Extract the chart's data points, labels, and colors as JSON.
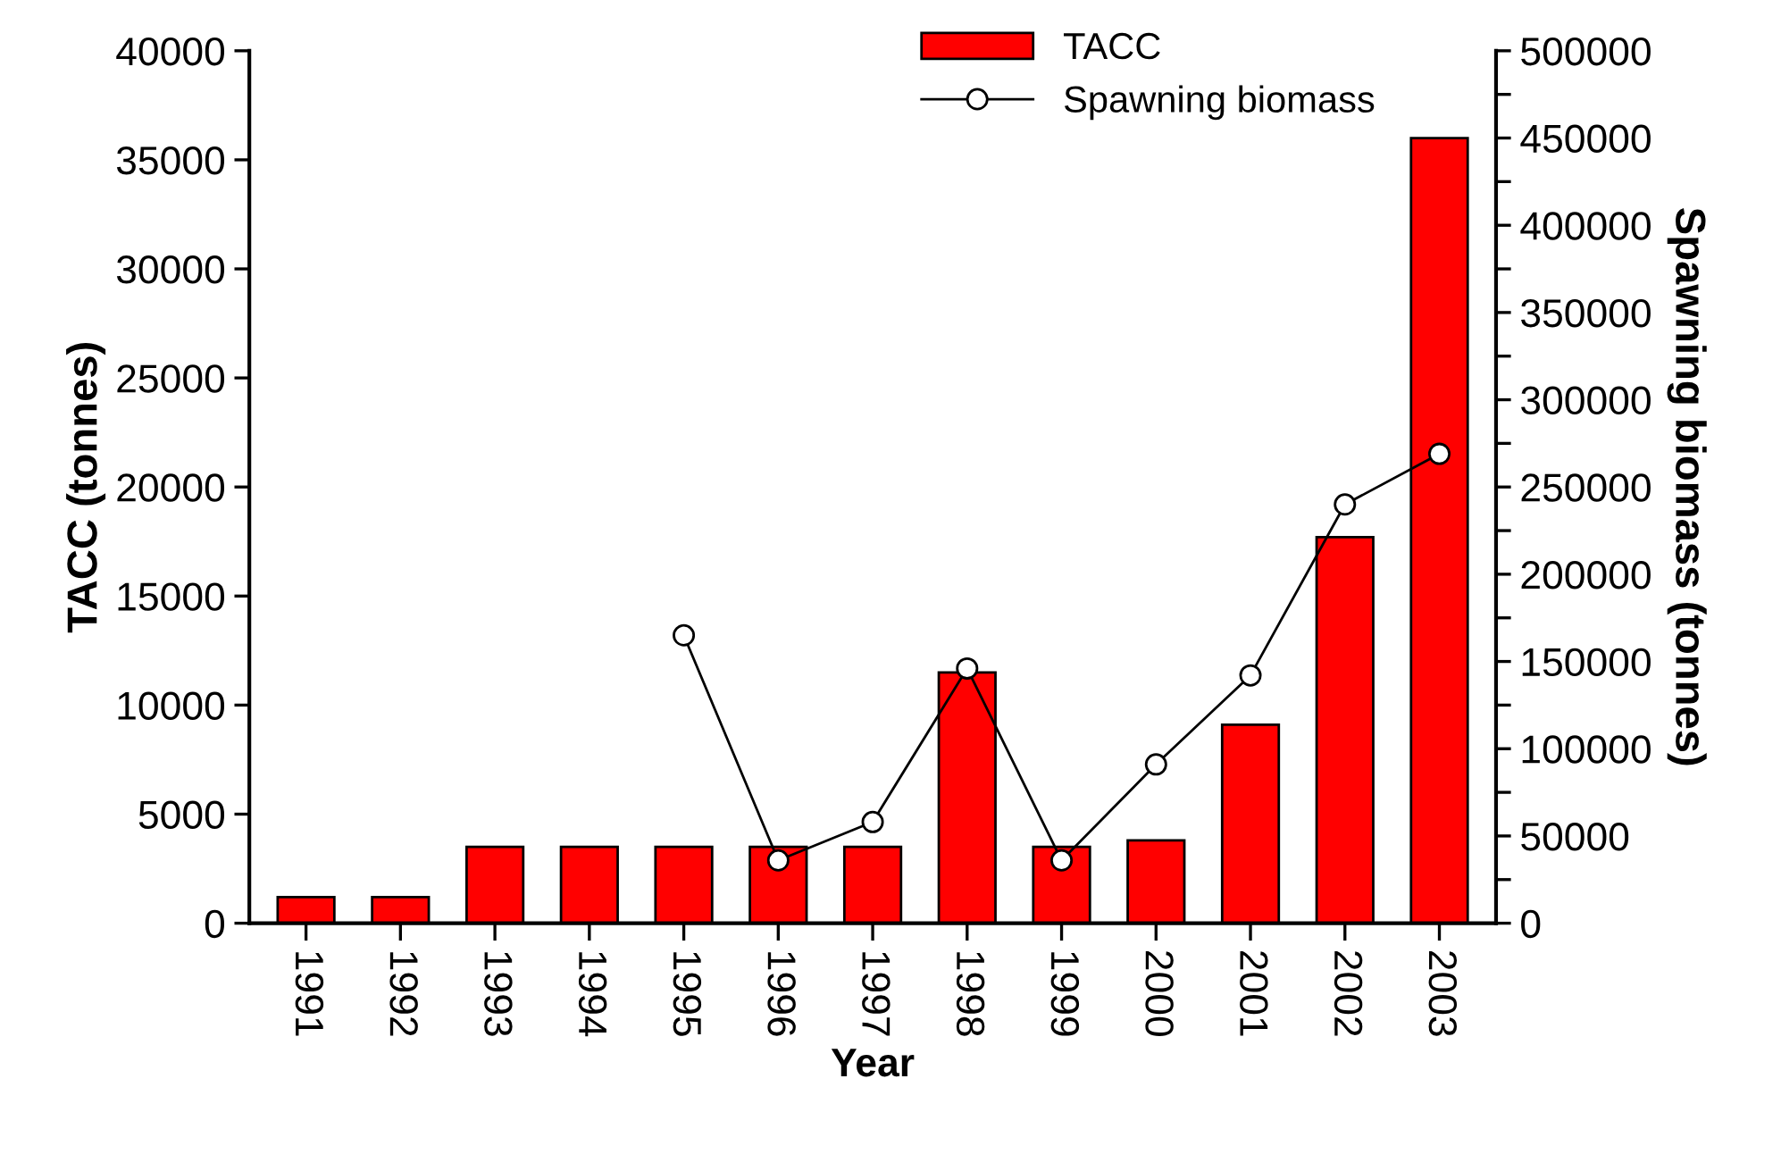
{
  "chart_data": {
    "type": "bar",
    "xlabel": "Year",
    "ylabel": "TACC (tonnes)",
    "y2label": "Spawning biomass (tonnes)",
    "categories": [
      "1991",
      "1992",
      "1993",
      "1994",
      "1995",
      "1996",
      "1997",
      "1998",
      "1999",
      "2000",
      "2001",
      "2002",
      "2003"
    ],
    "series": [
      {
        "name": "TACC",
        "color": "#ff0000",
        "values": [
          1200,
          1200,
          3500,
          3500,
          3500,
          3500,
          3500,
          11500,
          3500,
          3800,
          9100,
          17700,
          36000
        ]
      },
      {
        "name": "Spawning biomass",
        "type": "line",
        "axis": "y2",
        "color": "#000000",
        "marker": "circle",
        "values": [
          null,
          null,
          null,
          null,
          165000,
          36000,
          58000,
          146000,
          36000,
          91000,
          142000,
          240000,
          269000
        ]
      }
    ],
    "ylim": [
      0,
      40000
    ],
    "yticks": [
      0,
      5000,
      10000,
      15000,
      20000,
      25000,
      30000,
      35000,
      40000
    ],
    "y2lim": [
      0,
      500000
    ],
    "y2ticks": [
      0,
      {
        "value": 25000,
        "label": null
      },
      50000,
      {
        "value": 75000,
        "label": null
      },
      100000,
      {
        "value": 125000,
        "label": null
      },
      150000,
      {
        "value": 175000,
        "label": null
      },
      200000,
      {
        "value": 225000,
        "label": null
      },
      250000,
      {
        "value": 275000,
        "label": null
      },
      300000,
      {
        "value": 325000,
        "label": null
      },
      350000,
      {
        "value": 375000,
        "label": null
      },
      400000,
      {
        "value": 425000,
        "label": null
      },
      450000,
      {
        "value": 475000,
        "label": null
      },
      500000
    ],
    "grid": false,
    "legend": "top right"
  }
}
